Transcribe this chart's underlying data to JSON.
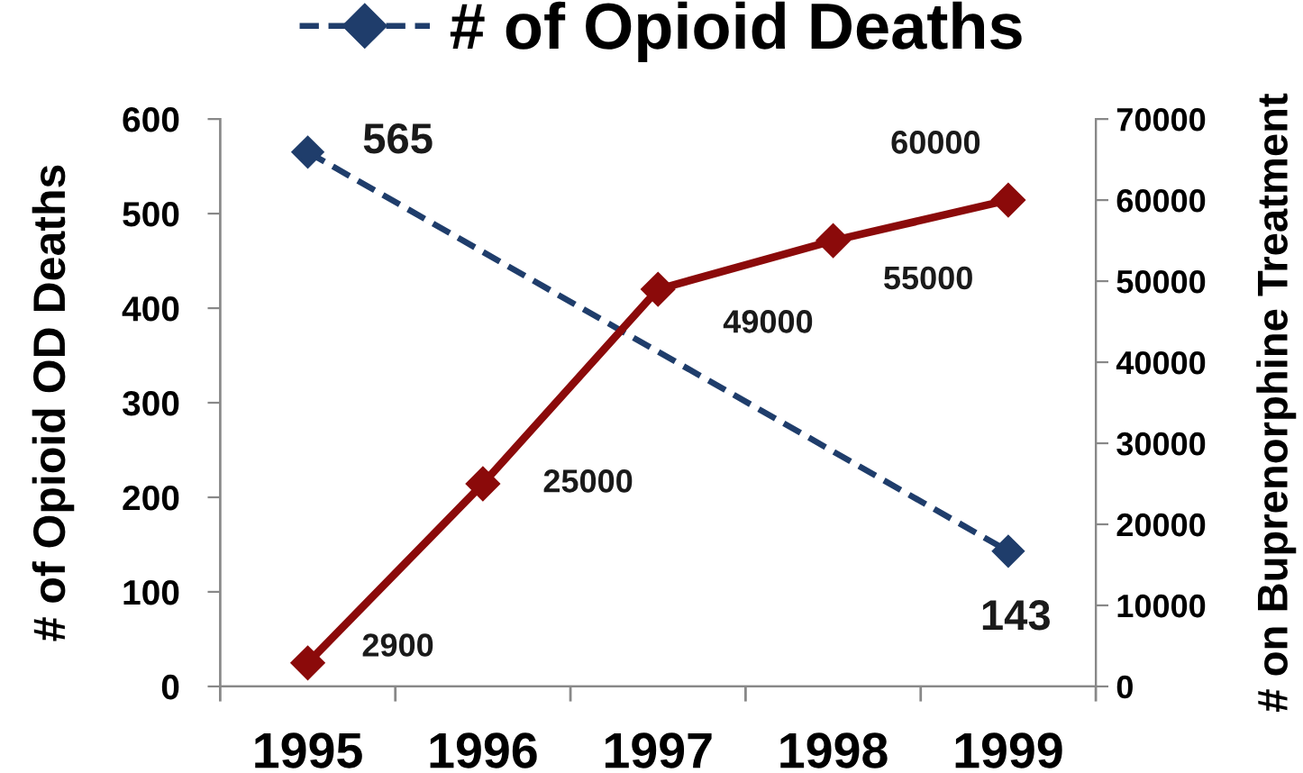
{
  "chart_data": {
    "type": "line",
    "categories": [
      "1995",
      "1996",
      "1997",
      "1998",
      "1999"
    ],
    "ylabel": "# of Opioid OD Deaths",
    "y2label": "# on Buprenorphine Treatment",
    "ylim": [
      0,
      600
    ],
    "yticks": [
      0,
      100,
      200,
      300,
      400,
      500,
      600
    ],
    "y2lim": [
      0,
      70000
    ],
    "y2ticks": [
      0,
      10000,
      20000,
      30000,
      40000,
      50000,
      60000,
      70000
    ],
    "series": [
      {
        "name": "# of Opioid Deaths",
        "color": "#1f3d6b",
        "values": [
          565,
          null,
          null,
          null,
          143
        ],
        "line_style": "dashed",
        "marker": "diamond"
      },
      {
        "color": "#8b0a0a",
        "axis": "y2",
        "values": [
          2900,
          25000,
          49000,
          55000,
          60000
        ],
        "line_style": "solid",
        "marker": "diamond"
      }
    ],
    "legend": "top",
    "data_labels": true,
    "grid": false
  }
}
